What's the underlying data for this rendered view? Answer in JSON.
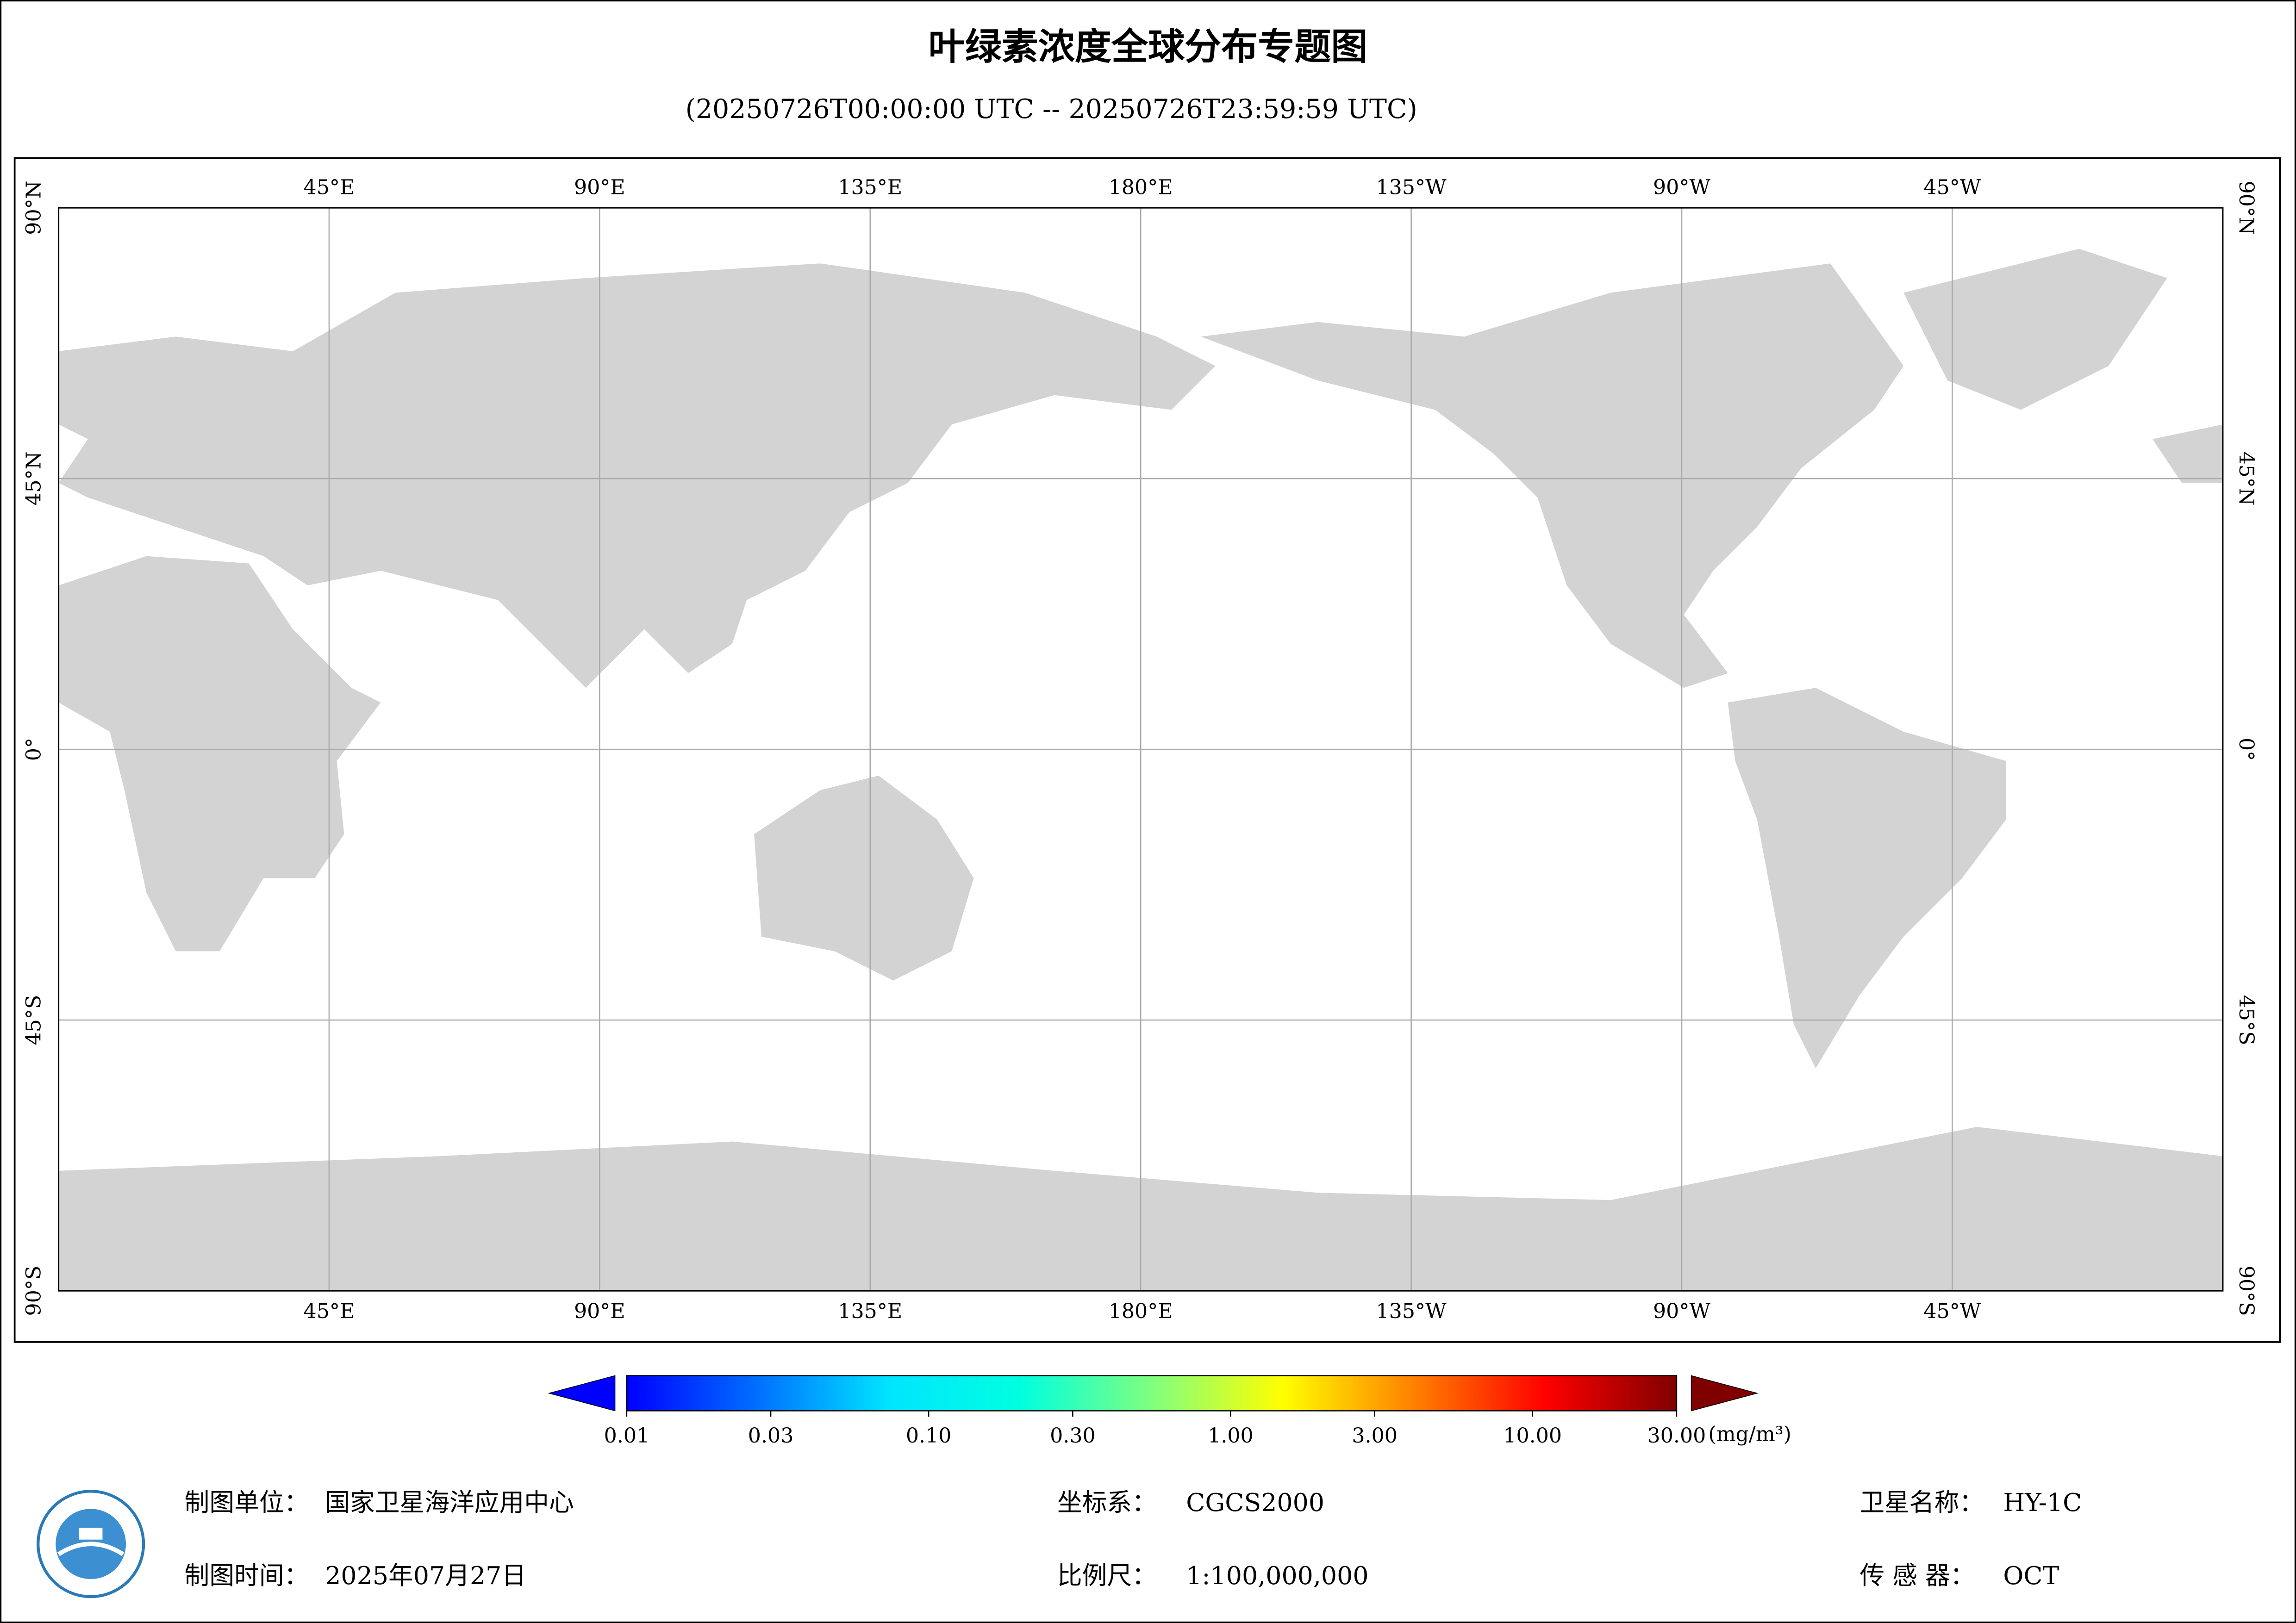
{
  "header": {
    "title": "叶绿素浓度全球分布专题图",
    "subtitle": "(20250726T00:00:00 UTC -- 20250726T23:59:59 UTC)"
  },
  "map": {
    "lon_ticks": [
      {
        "value": 45,
        "label": "45°E"
      },
      {
        "value": 90,
        "label": "90°E"
      },
      {
        "value": 135,
        "label": "135°E"
      },
      {
        "value": 180,
        "label": "180°E"
      },
      {
        "value": -135,
        "label": "135°W"
      },
      {
        "value": -90,
        "label": "90°W"
      },
      {
        "value": -45,
        "label": "45°W"
      }
    ],
    "lat_ticks": [
      {
        "value": 90,
        "label": "90°N"
      },
      {
        "value": 45,
        "label": "45°N"
      },
      {
        "value": 0,
        "label": "0°"
      },
      {
        "value": -45,
        "label": "45°S"
      },
      {
        "value": -90,
        "label": "90°S"
      }
    ]
  },
  "colorbar": {
    "scale": "log",
    "lim": [
      0.01,
      30
    ],
    "ticks": [
      0.01,
      0.03,
      {
        "value": 0.1,
        "label": "0.10"
      },
      {
        "value": 0.3,
        "label": "0.30"
      },
      {
        "value": 1,
        "label": "1.00"
      },
      {
        "value": 3,
        "label": "3.00"
      },
      {
        "value": 10,
        "label": "10.00"
      },
      {
        "value": 30,
        "label": "30.00"
      }
    ],
    "unit": "(mg/m³)",
    "colors": [
      "#0000ff",
      "#0070ff",
      "#00e5ff",
      "#00ffe0",
      "#7fff7f",
      "#ffff00",
      "#ff8000",
      "#ff0000",
      "#800000"
    ]
  },
  "footer": {
    "unit_label": "制图单位：",
    "unit_value": "国家卫星海洋应用中心",
    "date_label": "制图时间：",
    "date_value": "2025年07月27日",
    "crs_label": "坐标系：",
    "crs_value": "CGCS2000",
    "scale_label": "比例尺：",
    "scale_value": "1:100,000,000",
    "sat_label": "卫星名称：",
    "sat_value": "HY-1C",
    "sensor_label": "传 感 器：",
    "sensor_value": "OCT"
  }
}
